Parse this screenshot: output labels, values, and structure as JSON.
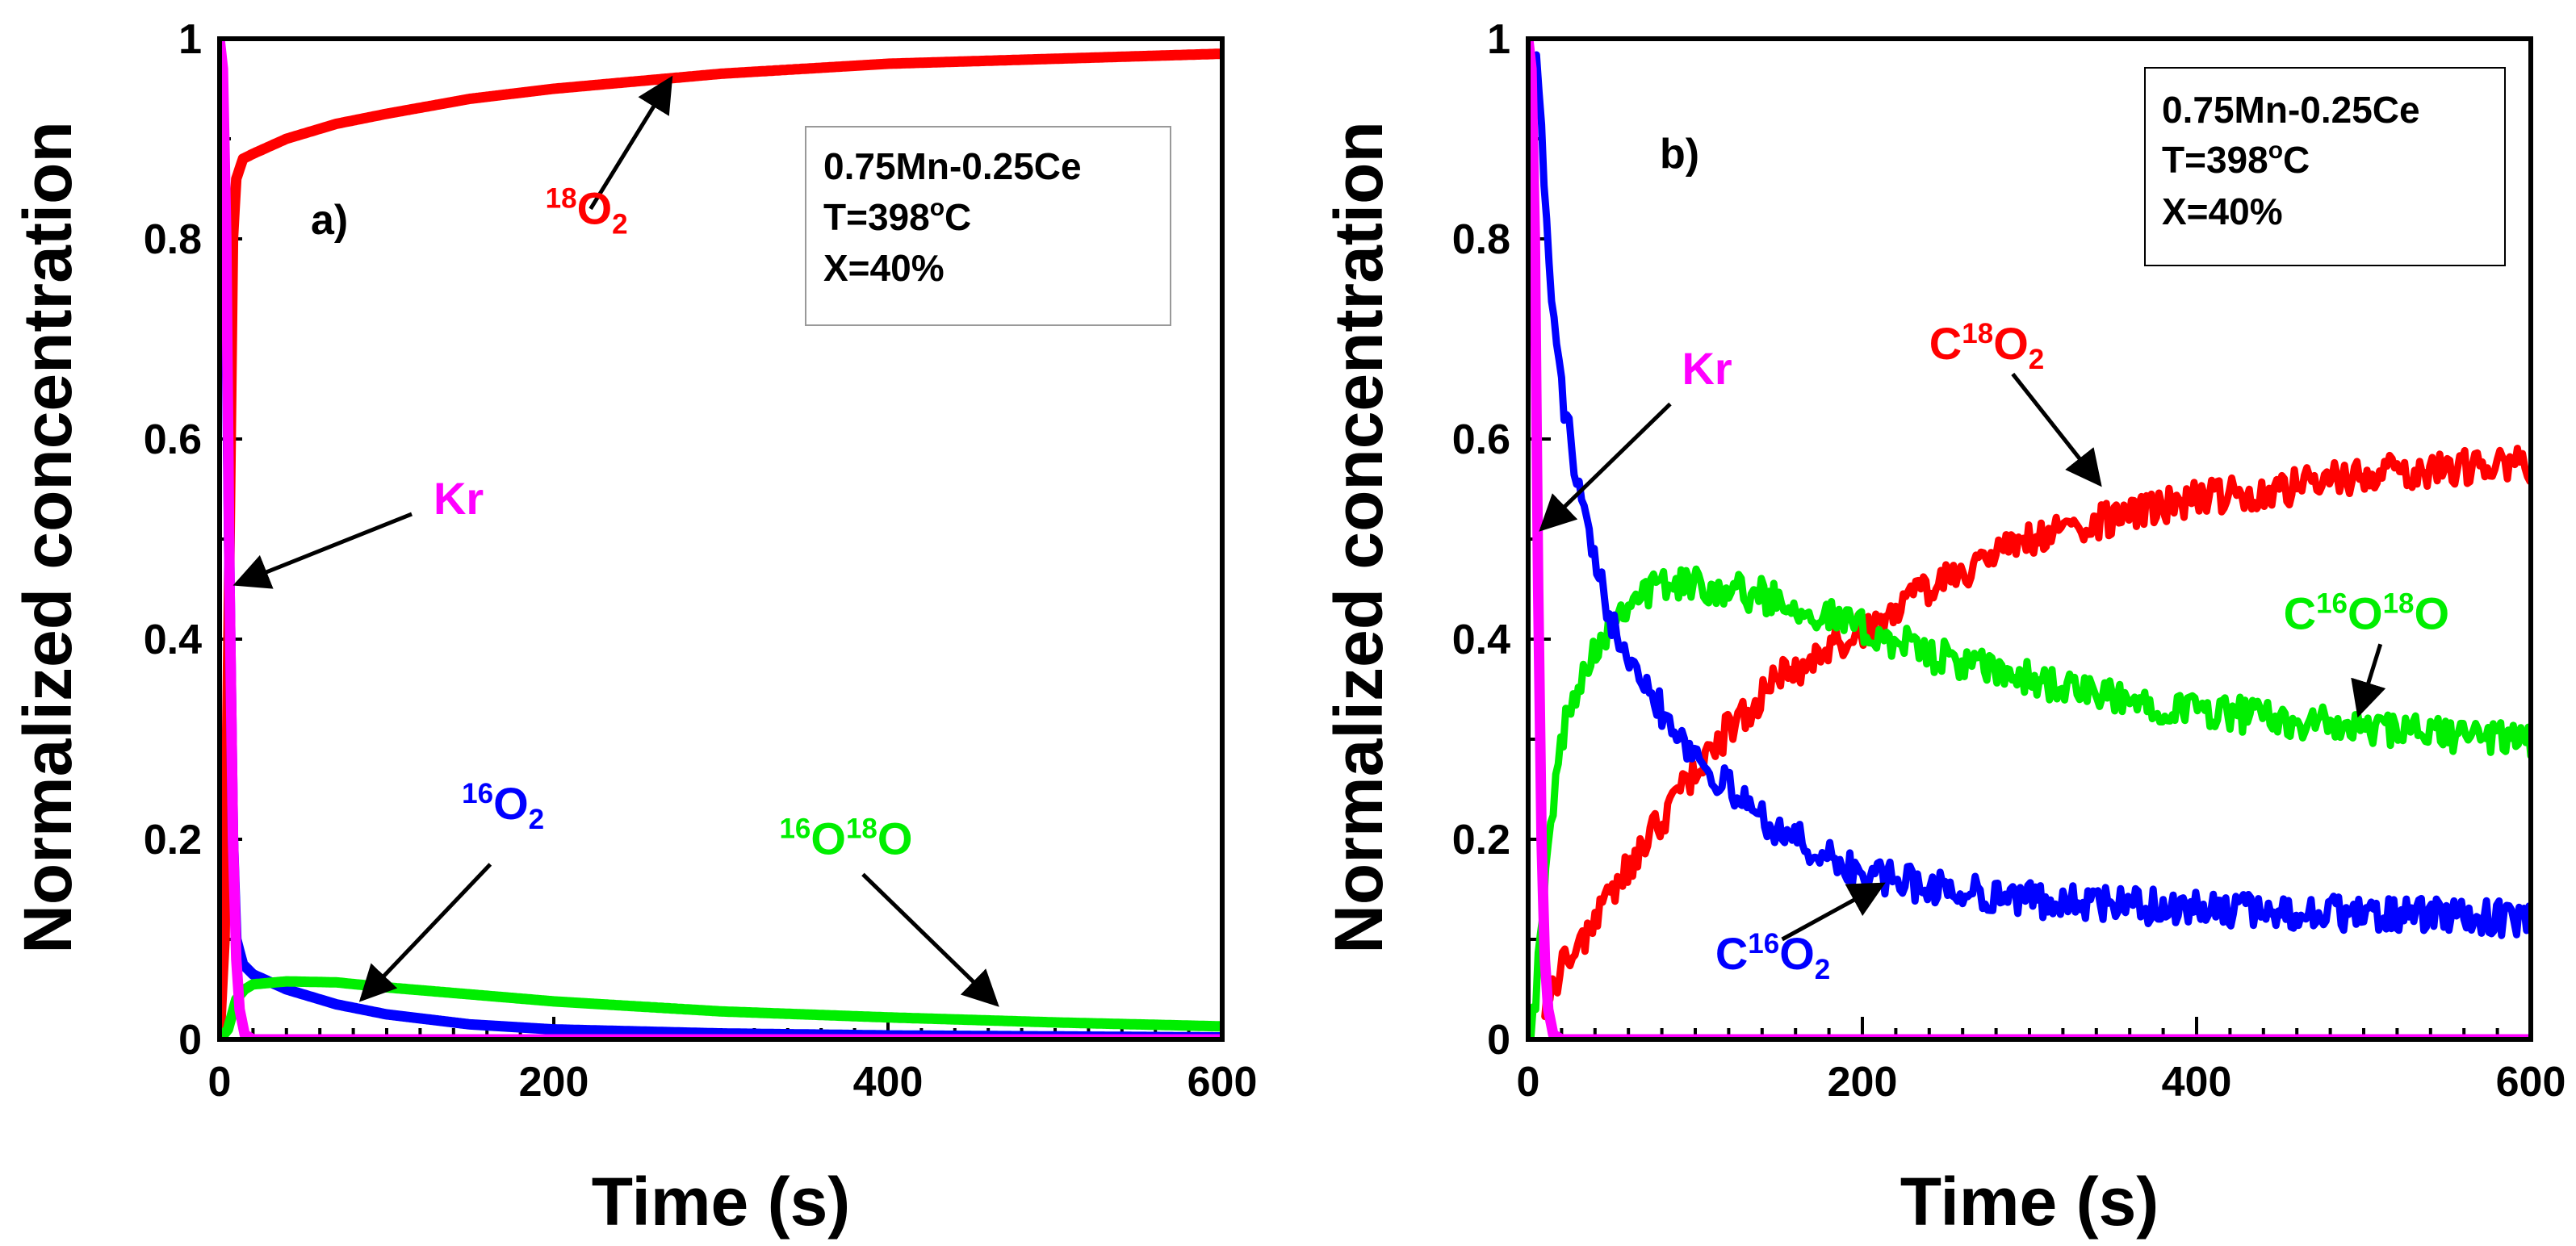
{
  "chart_data": [
    {
      "panel": "a)",
      "type": "line",
      "xlabel": "Time (s)",
      "ylabel": "Normalized concentration",
      "xlim": [
        0,
        600
      ],
      "ylim": [
        0,
        1
      ],
      "xticks": [
        0,
        200,
        400,
        600
      ],
      "yticks": [
        0,
        0.2,
        0.4,
        0.6,
        0.8,
        1
      ],
      "ytick_labels": [
        "0",
        "0.2",
        "0.4",
        "0.6",
        "0.8",
        "1"
      ],
      "legend_box": [
        "0.75Mn-0.25Ce",
        "T=398oC",
        "X=40%"
      ],
      "series": [
        {
          "name": "18O2",
          "label": {
            "iso": "18",
            "base": "O",
            "sub": "2"
          },
          "color": "#ff0000",
          "x": [
            0,
            3,
            6,
            8,
            10,
            14,
            20,
            40,
            70,
            100,
            150,
            200,
            300,
            400,
            500,
            600
          ],
          "y": [
            0,
            0.1,
            0.5,
            0.8,
            0.86,
            0.88,
            0.885,
            0.9,
            0.915,
            0.925,
            0.94,
            0.95,
            0.965,
            0.975,
            0.98,
            0.985
          ]
        },
        {
          "name": "16O2",
          "label": {
            "iso": "16",
            "base": "O",
            "sub": "2"
          },
          "color": "#0000ff",
          "x": [
            0,
            2,
            4,
            6,
            8,
            10,
            14,
            20,
            40,
            70,
            100,
            150,
            200,
            300,
            400,
            500,
            600
          ],
          "y": [
            1.0,
            0.95,
            0.75,
            0.45,
            0.2,
            0.1,
            0.075,
            0.065,
            0.05,
            0.035,
            0.025,
            0.015,
            0.01,
            0.006,
            0.004,
            0.003,
            0.002
          ]
        },
        {
          "name": "16O18O",
          "label": {
            "iso": "16",
            "base": "O",
            "iso2": "18",
            "base2": "O"
          },
          "color": "#00ee00",
          "x": [
            0,
            5,
            10,
            15,
            20,
            40,
            70,
            100,
            150,
            200,
            300,
            400,
            500,
            600
          ],
          "y": [
            0,
            0.01,
            0.04,
            0.05,
            0.055,
            0.058,
            0.057,
            0.052,
            0.045,
            0.038,
            0.028,
            0.022,
            0.017,
            0.013
          ]
        },
        {
          "name": "Kr",
          "label": {
            "base": "Kr"
          },
          "color": "#ff00ff",
          "x": [
            0,
            2,
            4,
            6,
            8,
            10,
            12,
            15,
            20,
            50,
            100,
            200,
            400,
            600
          ],
          "y": [
            1.0,
            0.97,
            0.8,
            0.45,
            0.2,
            0.08,
            0.03,
            0.005,
            0,
            0,
            0,
            0,
            0,
            0
          ]
        }
      ],
      "annotations": [
        {
          "series": "18O2",
          "text": {
            "iso": "18",
            "base": "O",
            "sub": "2"
          },
          "color": "#ff0000",
          "text_at": [
            195,
            0.815
          ],
          "arrow_from": [
            222,
            0.83
          ],
          "arrow_to": [
            270,
            0.96
          ]
        },
        {
          "series": "Kr",
          "text": {
            "base": "Kr"
          },
          "color": "#ff00ff",
          "text_at": [
            128,
            0.525
          ],
          "arrow_from": [
            115,
            0.525
          ],
          "arrow_to": [
            10,
            0.455
          ]
        },
        {
          "series": "16O2",
          "text": {
            "iso": "16",
            "base": "O",
            "sub": "2"
          },
          "color": "#0000ff",
          "text_at": [
            145,
            0.22
          ],
          "arrow_from": [
            162,
            0.175
          ],
          "arrow_to": [
            85,
            0.04
          ]
        },
        {
          "series": "16O18O",
          "text": {
            "iso": "16",
            "base": "O",
            "iso2": "18",
            "base2": "O"
          },
          "color": "#00ee00",
          "text_at": [
            335,
            0.185
          ],
          "arrow_from": [
            385,
            0.165
          ],
          "arrow_to": [
            465,
            0.035
          ]
        }
      ]
    },
    {
      "panel": "b)",
      "type": "line",
      "xlabel": "Time (s)",
      "ylabel": "Normalized concentration",
      "xlim": [
        0,
        600
      ],
      "ylim": [
        0,
        1
      ],
      "xticks": [
        0,
        200,
        400,
        600
      ],
      "yticks": [
        0,
        0.2,
        0.4,
        0.6,
        0.8,
        1
      ],
      "ytick_labels": [
        "0",
        "0.2",
        "0.4",
        "0.6",
        "0.8",
        "1"
      ],
      "legend_box": [
        "0.75Mn-0.25Ce",
        "T=398oC",
        "X=40%"
      ],
      "series": [
        {
          "name": "C18O2",
          "label": {
            "pre": "C",
            "iso": "18",
            "base": "O",
            "sub": "2"
          },
          "color": "#ff0000",
          "x": [
            10,
            20,
            40,
            60,
            80,
            100,
            120,
            150,
            180,
            200,
            250,
            300,
            350,
            400,
            450,
            500,
            550,
            600
          ],
          "y": [
            0.04,
            0.07,
            0.12,
            0.17,
            0.22,
            0.27,
            0.31,
            0.36,
            0.39,
            0.41,
            0.46,
            0.5,
            0.52,
            0.54,
            0.55,
            0.565,
            0.57,
            0.575
          ]
        },
        {
          "name": "C16O18O",
          "label": {
            "pre": "C",
            "iso": "16",
            "base": "O",
            "iso2": "18",
            "base2": "O"
          },
          "color": "#00ee00",
          "x": [
            0,
            5,
            10,
            15,
            20,
            30,
            40,
            50,
            60,
            80,
            100,
            120,
            150,
            200,
            250,
            300,
            350,
            400,
            450,
            500,
            550,
            600
          ],
          "y": [
            0,
            0.05,
            0.15,
            0.24,
            0.3,
            0.36,
            0.39,
            0.42,
            0.44,
            0.455,
            0.455,
            0.45,
            0.44,
            0.41,
            0.38,
            0.36,
            0.34,
            0.33,
            0.32,
            0.31,
            0.305,
            0.3
          ]
        },
        {
          "name": "C16O2",
          "label": {
            "pre": "C",
            "iso": "16",
            "base": "O",
            "sub": "2"
          },
          "color": "#0000ff",
          "x": [
            5,
            8,
            10,
            15,
            20,
            30,
            40,
            50,
            60,
            70,
            80,
            100,
            120,
            150,
            180,
            200,
            250,
            300,
            350,
            400,
            450,
            500,
            550,
            600
          ],
          "y": [
            1.0,
            0.9,
            0.84,
            0.72,
            0.65,
            0.55,
            0.47,
            0.42,
            0.39,
            0.36,
            0.33,
            0.285,
            0.25,
            0.21,
            0.18,
            0.165,
            0.15,
            0.14,
            0.135,
            0.13,
            0.128,
            0.125,
            0.123,
            0.12
          ]
        },
        {
          "name": "Kr",
          "label": {
            "base": "Kr"
          },
          "color": "#ff00ff",
          "x": [
            0,
            2,
            4,
            6,
            8,
            10,
            12,
            15,
            20,
            50,
            100,
            200,
            400,
            600
          ],
          "y": [
            1.0,
            0.97,
            0.8,
            0.45,
            0.2,
            0.08,
            0.03,
            0.005,
            0,
            0,
            0,
            0,
            0,
            0
          ]
        }
      ],
      "annotations": [
        {
          "series": "Kr",
          "text": {
            "base": "Kr"
          },
          "color": "#ff00ff",
          "text_at": [
            92,
            0.655
          ],
          "arrow_from": [
            85,
            0.635
          ],
          "arrow_to": [
            8,
            0.51
          ]
        },
        {
          "series": "C18O2",
          "text": {
            "pre": "C",
            "iso": "18",
            "base": "O",
            "sub": "2"
          },
          "color": "#ff0000",
          "text_at": [
            240,
            0.68
          ],
          "arrow_from": [
            290,
            0.665
          ],
          "arrow_to": [
            342,
            0.555
          ]
        },
        {
          "series": "C16O18O",
          "text": {
            "pre": "C",
            "iso": "16",
            "base": "O",
            "iso2": "18",
            "base2": "O"
          },
          "color": "#00ee00",
          "text_at": [
            452,
            0.41
          ],
          "arrow_from": [
            510,
            0.395
          ],
          "arrow_to": [
            497,
            0.325
          ]
        },
        {
          "series": "C16O2",
          "text": {
            "pre": "C",
            "iso": "16",
            "base": "O",
            "sub": "2"
          },
          "color": "#0000ff",
          "text_at": [
            112,
            0.07
          ],
          "arrow_from": [
            152,
            0.1
          ],
          "arrow_to": [
            212,
            0.155
          ]
        }
      ]
    }
  ]
}
